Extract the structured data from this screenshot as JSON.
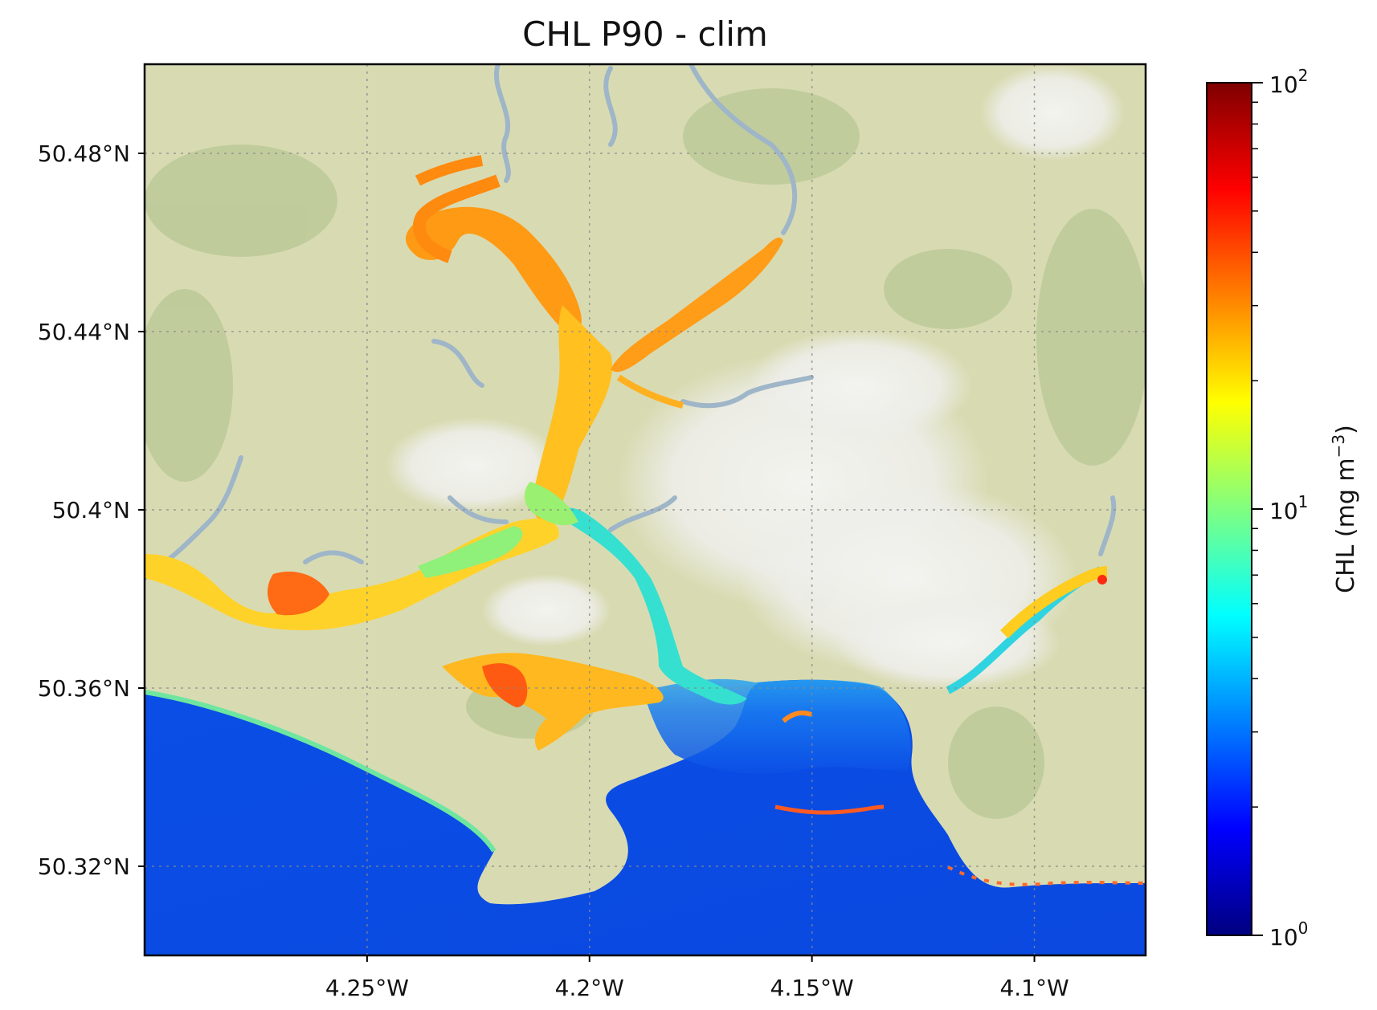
{
  "title": "CHL P90 - clim",
  "map": {
    "lat_ticks": [
      "50.48°N",
      "50.44°N",
      "50.4°N",
      "50.36°N",
      "50.32°N"
    ],
    "lon_ticks": [
      "4.25°W",
      "4.2°W",
      "4.15°W",
      "4.1°W"
    ],
    "lat_values": [
      50.48,
      50.44,
      50.4,
      50.36,
      50.32
    ],
    "lon_values": [
      -4.25,
      -4.2,
      -4.15,
      -4.1
    ],
    "extent": {
      "lon_min": -4.3,
      "lon_max": -4.075,
      "lat_min": 50.3,
      "lat_max": 50.5
    },
    "colors": {
      "land": "#d9dcb4",
      "relief": "#b9c79a",
      "snow": "#eeeeea",
      "sea": "#1457e6",
      "river": "#9fb5c8"
    }
  },
  "colorbar": {
    "label_main": "CHL (mg m",
    "label_exp": "−3",
    "label_close": ")",
    "scale": "log",
    "min": 1,
    "max": 100,
    "ticks": [
      {
        "base": "10",
        "exp": "2",
        "value": 100
      },
      {
        "base": "10",
        "exp": "1",
        "value": 10
      },
      {
        "base": "10",
        "exp": "0",
        "value": 1
      }
    ],
    "colormap": [
      "#00007f",
      "#0000ff",
      "#0080ff",
      "#00ffff",
      "#80ff80",
      "#ffff00",
      "#ff8000",
      "#ff0000",
      "#7f0000"
    ]
  }
}
